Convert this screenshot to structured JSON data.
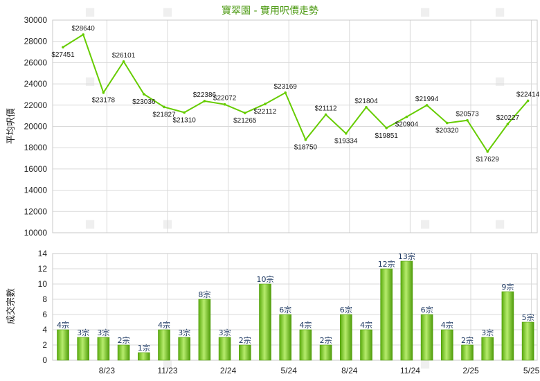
{
  "colors": {
    "accent": "#66cc00",
    "title": "#4c9a12",
    "bar_light": "#b7ec6d",
    "bar_dark": "#5aab0e",
    "grid": "#d9d9d9"
  },
  "chart_data": [
    {
      "type": "line",
      "title": "寶翠園 - 實用呎價走勢",
      "xlabel": "",
      "ylabel": "平均呎價",
      "ylim": [
        10000,
        30000
      ],
      "yticks": [
        10000,
        12000,
        14000,
        16000,
        18000,
        20000,
        22000,
        24000,
        26000,
        28000,
        30000
      ],
      "grid": true,
      "series": [
        {
          "values": [
            27451,
            28640,
            23178,
            26101,
            23036,
            21827,
            21310,
            22386,
            22072,
            21265,
            22112,
            23169,
            18750,
            21112,
            19334,
            21804,
            19851,
            20904,
            21994,
            20320,
            20573,
            17629,
            20227,
            22414
          ],
          "labels": [
            "$27451",
            "$28640",
            "$23178",
            "$26101",
            "$23036",
            "$21827",
            "$21310",
            "$22386",
            "$22072",
            "$21265",
            "$22112",
            "$23169",
            "$18750",
            "$21112",
            "$19334",
            "$21804",
            "$19851",
            "$20904",
            "$21994",
            "$20320",
            "$20573",
            "$17629",
            "$20227",
            "$22414"
          ]
        }
      ]
    },
    {
      "type": "bar",
      "ylabel": "成交宗數",
      "ylim": [
        0,
        14
      ],
      "yticks": [
        0,
        2,
        4,
        6,
        8,
        10,
        12,
        14
      ],
      "grid": true,
      "x_tick_labels": [
        {
          "label": "8/23",
          "index": 2
        },
        {
          "label": "11/23",
          "index": 5
        },
        {
          "label": "2/24",
          "index": 8
        },
        {
          "label": "5/24",
          "index": 11
        },
        {
          "label": "8/24",
          "index": 14
        },
        {
          "label": "11/24",
          "index": 17
        },
        {
          "label": "2/25",
          "index": 20
        },
        {
          "label": "5/25",
          "index": 23
        }
      ],
      "series": [
        {
          "values": [
            4,
            3,
            3,
            2,
            1,
            4,
            3,
            8,
            3,
            2,
            10,
            6,
            4,
            2,
            6,
            4,
            12,
            13,
            6,
            4,
            2,
            3,
            9,
            5
          ],
          "labels": [
            "4宗",
            "3宗",
            "3宗",
            "2宗",
            "1宗",
            "4宗",
            "3宗",
            "8宗",
            "3宗",
            "2宗",
            "10宗",
            "6宗",
            "4宗",
            "2宗",
            "6宗",
            "4宗",
            "12宗",
            "13宗",
            "6宗",
            "4宗",
            "2宗",
            "3宗",
            "9宗",
            "5宗"
          ]
        }
      ]
    }
  ]
}
